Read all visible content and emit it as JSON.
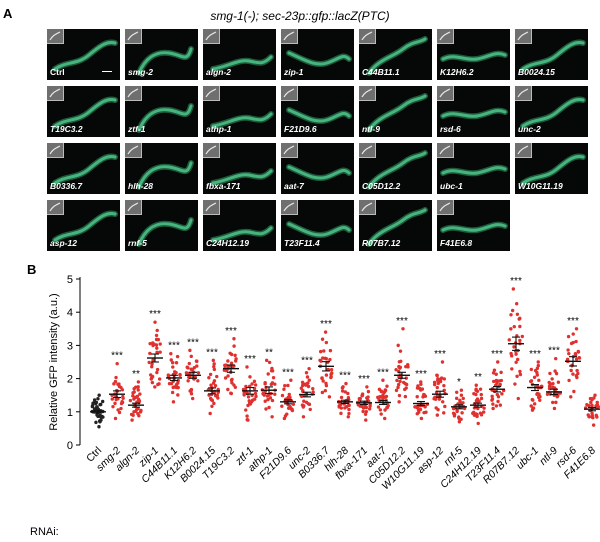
{
  "panel_a": {
    "letter": "A",
    "title": "smg-1(-); sec-23p::gfp::lacZ(PTC)",
    "tiles": [
      "Ctrl",
      "smg-2",
      "algn-2",
      "zip-1",
      "C44B11.1",
      "K12H6.2",
      "B0024.15",
      "T19C3.2",
      "ztf-1",
      "athp-1",
      "F21D9.6",
      "ntl-9",
      "rsd-6",
      "unc-2",
      "B0336.7",
      "hlh-28",
      "fbxa-171",
      "aat-7",
      "C05D12.2",
      "ubc-1",
      "W10G11.19",
      "asp-12",
      "rnf-5",
      "C24H12.19",
      "T23F11.4",
      "R07B7.12",
      "F41E6.8"
    ]
  },
  "panel_b": {
    "letter": "B",
    "rnai_label": "RNAi:"
  },
  "chart_data": {
    "type": "scatter",
    "ylabel": "Relative GFP intensity  (a.u.)",
    "xlabel": "",
    "ylim": [
      0,
      5
    ],
    "yticks": [
      0,
      1,
      2,
      3,
      4,
      5
    ],
    "categories": [
      "Ctrl",
      "smg-2",
      "algn-2",
      "zip-1",
      "C44B11.1",
      "K12H6.2",
      "B0024.15",
      "T19C3.2",
      "ztf-1",
      "athp-1",
      "F21D9.6",
      "unc-2",
      "B0336.7",
      "hlh-28",
      "fbxa-171",
      "aat-7",
      "C05D12.2",
      "W10G11.19",
      "asp-12",
      "rnf-5",
      "C24H12.19",
      "T23F11.4",
      "R07B7.12",
      "ubc-1",
      "ntl-9",
      "rsd-6",
      "F41E6.8"
    ],
    "means": [
      1.0,
      1.53,
      1.2,
      2.62,
      2.02,
      2.1,
      1.63,
      2.3,
      1.63,
      1.65,
      1.3,
      1.52,
      2.37,
      1.3,
      1.27,
      1.28,
      2.1,
      1.25,
      1.53,
      1.15,
      1.2,
      1.68,
      3.05,
      1.73,
      1.6,
      2.52,
      1.08
    ],
    "sems": [
      0.04,
      0.1,
      0.06,
      0.12,
      0.08,
      0.09,
      0.09,
      0.11,
      0.1,
      0.1,
      0.06,
      0.07,
      0.14,
      0.05,
      0.05,
      0.06,
      0.09,
      0.06,
      0.09,
      0.06,
      0.06,
      0.08,
      0.2,
      0.09,
      0.08,
      0.14,
      0.05
    ],
    "ranges": [
      [
        0.55,
        1.5
      ],
      [
        0.8,
        2.45
      ],
      [
        0.75,
        1.9
      ],
      [
        1.75,
        3.7
      ],
      [
        1.3,
        2.75
      ],
      [
        1.4,
        2.85
      ],
      [
        0.95,
        2.55
      ],
      [
        1.55,
        3.2
      ],
      [
        0.75,
        2.35
      ],
      [
        0.85,
        2.55
      ],
      [
        0.8,
        1.95
      ],
      [
        0.85,
        2.3
      ],
      [
        1.45,
        3.4
      ],
      [
        0.85,
        1.85
      ],
      [
        0.75,
        1.75
      ],
      [
        0.8,
        1.95
      ],
      [
        1.3,
        3.5
      ],
      [
        0.8,
        1.9
      ],
      [
        0.9,
        2.5
      ],
      [
        0.7,
        1.65
      ],
      [
        0.65,
        1.8
      ],
      [
        1.1,
        2.5
      ],
      [
        1.4,
        4.7
      ],
      [
        1.05,
        2.5
      ],
      [
        1.1,
        2.6
      ],
      [
        1.45,
        3.5
      ],
      [
        0.6,
        1.5
      ]
    ],
    "n_points": [
      40,
      30,
      30,
      30,
      30,
      30,
      30,
      30,
      30,
      30,
      30,
      30,
      30,
      30,
      30,
      30,
      30,
      30,
      30,
      30,
      30,
      30,
      30,
      30,
      30,
      30,
      30
    ],
    "significance": [
      "",
      "***",
      "**",
      "***",
      "***",
      "***",
      "***",
      "***",
      "***",
      "**",
      "***",
      "***",
      "***",
      "***",
      "***",
      "***",
      "***",
      "***",
      "***",
      "*",
      "**",
      "***",
      "***",
      "***",
      "***",
      "***",
      ""
    ],
    "colors": {
      "control": "#222222",
      "rnai": "#e0312f",
      "error_bar": "#111111"
    }
  }
}
